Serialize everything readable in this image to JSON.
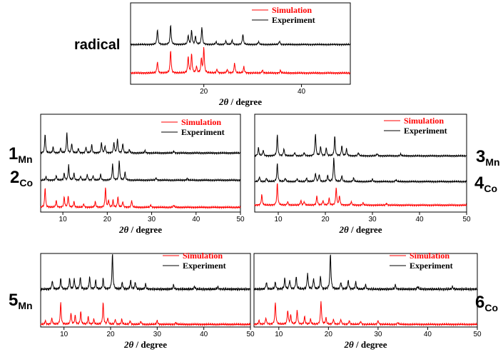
{
  "chart_data": [
    {
      "type": "line",
      "sample_label": "radical",
      "xlabel_prefix": "2θ",
      "xlabel_suffix": " / degree",
      "xlim": [
        5,
        50
      ],
      "xticks": [
        20,
        40
      ],
      "legend": [
        {
          "name": "Simulation",
          "color": "#ff0000"
        },
        {
          "name": "Experiment",
          "color": "#000000"
        }
      ],
      "series": [
        {
          "name": "Experiment",
          "color": "#000000",
          "baseline": 0.5,
          "peaks": [
            [
              10.5,
              0.65
            ],
            [
              13.2,
              0.85
            ],
            [
              16.8,
              0.4
            ],
            [
              17.5,
              0.6
            ],
            [
              18.3,
              0.35
            ],
            [
              19.6,
              0.75
            ],
            [
              22.5,
              0.12
            ],
            [
              24.5,
              0.15
            ],
            [
              25.8,
              0.18
            ],
            [
              28,
              0.45
            ],
            [
              31.2,
              0.12
            ],
            [
              35.5,
              0.15
            ]
          ]
        },
        {
          "name": "Simulation",
          "color": "#ff0000",
          "baseline": 0.06,
          "peaks": [
            [
              10.5,
              0.45
            ],
            [
              13.2,
              0.9
            ],
            [
              16.8,
              0.65
            ],
            [
              17.5,
              0.75
            ],
            [
              18.5,
              0.25
            ],
            [
              19.5,
              0.55
            ],
            [
              20,
              1.0
            ],
            [
              22.7,
              0.15
            ],
            [
              24.8,
              0.15
            ],
            [
              26.3,
              0.4
            ],
            [
              28.2,
              0.25
            ],
            [
              32,
              0.12
            ],
            [
              35.7,
              0.1
            ]
          ]
        }
      ]
    },
    {
      "type": "line",
      "sample_labels": [
        {
          "main": "1",
          "sub": "Mn"
        },
        {
          "main": "2",
          "sub": "Co"
        }
      ],
      "xlabel_prefix": "2θ",
      "xlabel_suffix": " / degree",
      "xlim": [
        5,
        50
      ],
      "xticks": [
        10,
        20,
        30,
        40,
        50
      ],
      "legend": [
        {
          "name": "Simulation",
          "color": "#ff0000"
        },
        {
          "name": "Experiment",
          "color": "#000000"
        }
      ],
      "series": [
        {
          "name": "1Mn",
          "color": "#000000",
          "baseline": 0.78,
          "peaks": [
            [
              6,
              0.8
            ],
            [
              7.8,
              0.25
            ],
            [
              9.5,
              0.2
            ],
            [
              10.9,
              0.85
            ],
            [
              12,
              0.4
            ],
            [
              13.5,
              0.2
            ],
            [
              15.2,
              0.25
            ],
            [
              16.5,
              0.35
            ],
            [
              18.7,
              0.45
            ],
            [
              19.5,
              0.3
            ],
            [
              21.5,
              0.45
            ],
            [
              22.3,
              0.6
            ],
            [
              23.5,
              0.4
            ],
            [
              25,
              0.15
            ],
            [
              28.5,
              0.1
            ],
            [
              35,
              0.08
            ]
          ]
        },
        {
          "name": "2Co",
          "color": "#000000",
          "baseline": 0.45,
          "peaks": [
            [
              6.2,
              0.15
            ],
            [
              8.5,
              0.2
            ],
            [
              10.3,
              0.3
            ],
            [
              11.3,
              0.65
            ],
            [
              12.5,
              0.3
            ],
            [
              14,
              0.18
            ],
            [
              15.5,
              0.25
            ],
            [
              16.8,
              0.2
            ],
            [
              18.5,
              0.25
            ],
            [
              21.2,
              0.7
            ],
            [
              22.7,
              0.85
            ],
            [
              24,
              0.35
            ],
            [
              31,
              0.1
            ],
            [
              38,
              0.08
            ]
          ]
        },
        {
          "name": "Simulation",
          "color": "#ff0000",
          "baseline": 0.06,
          "peaks": [
            [
              6,
              0.85
            ],
            [
              8.5,
              0.3
            ],
            [
              10.3,
              0.45
            ],
            [
              11.2,
              0.5
            ],
            [
              12.5,
              0.25
            ],
            [
              14.7,
              0.15
            ],
            [
              17.3,
              0.25
            ],
            [
              19.6,
              0.85
            ],
            [
              20.3,
              0.3
            ],
            [
              21.3,
              0.3
            ],
            [
              22.4,
              0.45
            ],
            [
              23.5,
              0.25
            ],
            [
              25.5,
              0.3
            ],
            [
              29.8,
              0.1
            ],
            [
              35,
              0.1
            ]
          ]
        }
      ]
    },
    {
      "type": "line",
      "sample_labels": [
        {
          "main": "3",
          "sub": "Mn"
        },
        {
          "main": "4",
          "sub": "Co"
        }
      ],
      "xlabel_prefix": "2θ",
      "xlabel_suffix": " / degree",
      "xlim": [
        5,
        50
      ],
      "xticks": [
        10,
        20,
        30,
        40,
        50
      ],
      "legend": [
        {
          "name": "Simulation",
          "color": "#ff0000"
        },
        {
          "name": "Experiment",
          "color": "#000000"
        }
      ],
      "series": [
        {
          "name": "3Mn",
          "color": "#000000",
          "baseline": 0.8,
          "peaks": [
            [
              5.8,
              0.35
            ],
            [
              6.8,
              0.25
            ],
            [
              9.8,
              0.9
            ],
            [
              11.2,
              0.3
            ],
            [
              13.5,
              0.15
            ],
            [
              15.5,
              0.15
            ],
            [
              17.9,
              0.95
            ],
            [
              19,
              0.4
            ],
            [
              20.2,
              0.35
            ],
            [
              22,
              0.85
            ],
            [
              23.5,
              0.45
            ],
            [
              24.5,
              0.3
            ],
            [
              27,
              0.15
            ],
            [
              31,
              0.1
            ],
            [
              36,
              0.08
            ]
          ]
        },
        {
          "name": "4Co",
          "color": "#000000",
          "baseline": 0.45,
          "peaks": [
            [
              6,
              0.2
            ],
            [
              7.5,
              0.15
            ],
            [
              9.8,
              0.75
            ],
            [
              11.5,
              0.15
            ],
            [
              14,
              0.12
            ],
            [
              16,
              0.15
            ],
            [
              17.9,
              0.35
            ],
            [
              18.7,
              0.3
            ],
            [
              20.5,
              0.25
            ],
            [
              21.8,
              1.0
            ],
            [
              23.5,
              0.25
            ],
            [
              26,
              0.15
            ],
            [
              30,
              0.1
            ],
            [
              35,
              0.08
            ]
          ]
        },
        {
          "name": "Simulation",
          "color": "#ff0000",
          "baseline": 0.06,
          "peaks": [
            [
              6.5,
              0.45
            ],
            [
              9.8,
              0.95
            ],
            [
              12,
              0.15
            ],
            [
              14.8,
              0.2
            ],
            [
              15.5,
              0.15
            ],
            [
              18.2,
              0.4
            ],
            [
              19.5,
              0.2
            ],
            [
              20.8,
              0.3
            ],
            [
              22.3,
              0.75
            ],
            [
              23,
              0.4
            ],
            [
              25.5,
              0.15
            ],
            [
              28,
              0.1
            ],
            [
              33,
              0.08
            ]
          ]
        }
      ]
    },
    {
      "type": "line",
      "sample_labels": [
        {
          "main": "5",
          "sub": "Mn"
        }
      ],
      "xlabel_prefix": "2θ",
      "xlabel_suffix": " / degree",
      "xlim": [
        5,
        50
      ],
      "xticks": [
        10,
        20,
        30,
        40,
        50
      ],
      "legend": [
        {
          "name": "Simulation",
          "color": "#ff0000"
        },
        {
          "name": "Experiment",
          "color": "#000000"
        }
      ],
      "series": [
        {
          "name": "5Mn",
          "color": "#000000",
          "baseline": 0.53,
          "peaks": [
            [
              7.5,
              0.25
            ],
            [
              9.3,
              0.3
            ],
            [
              11.2,
              0.3
            ],
            [
              12.2,
              0.3
            ],
            [
              13.5,
              0.35
            ],
            [
              15.5,
              0.35
            ],
            [
              16.8,
              0.25
            ],
            [
              18.4,
              0.3
            ],
            [
              20.4,
              1.0
            ],
            [
              22.5,
              0.2
            ],
            [
              24.3,
              0.25
            ],
            [
              25.3,
              0.2
            ],
            [
              27.5,
              0.15
            ],
            [
              33.5,
              0.12
            ],
            [
              38,
              0.08
            ],
            [
              43,
              0.07
            ]
          ]
        },
        {
          "name": "Simulation",
          "color": "#ff0000",
          "baseline": 0.06,
          "peaks": [
            [
              6,
              0.15
            ],
            [
              7.4,
              0.25
            ],
            [
              9.3,
              0.85
            ],
            [
              11.5,
              0.45
            ],
            [
              12.4,
              0.35
            ],
            [
              13.6,
              0.5
            ],
            [
              15.2,
              0.3
            ],
            [
              16.4,
              0.2
            ],
            [
              18.4,
              0.85
            ],
            [
              19.4,
              0.25
            ],
            [
              21,
              0.2
            ],
            [
              22.4,
              0.2
            ],
            [
              24.2,
              0.15
            ],
            [
              26.5,
              0.12
            ],
            [
              30,
              0.15
            ],
            [
              34,
              0.08
            ]
          ]
        }
      ]
    },
    {
      "type": "line",
      "sample_labels": [
        {
          "main": "6",
          "sub": "Co"
        }
      ],
      "xlabel_prefix": "2θ",
      "xlabel_suffix": " / degree",
      "xlim": [
        5,
        50
      ],
      "xticks": [
        10,
        20,
        30,
        40,
        50
      ],
      "legend": [
        {
          "name": "Simulation",
          "color": "#ff0000"
        },
        {
          "name": "Experiment",
          "color": "#000000"
        }
      ],
      "series": [
        {
          "name": "6Co",
          "color": "#000000",
          "baseline": 0.53,
          "peaks": [
            [
              7.5,
              0.2
            ],
            [
              9.3,
              0.2
            ],
            [
              11.2,
              0.3
            ],
            [
              12.2,
              0.25
            ],
            [
              13.5,
              0.35
            ],
            [
              15.8,
              0.45
            ],
            [
              17,
              0.3
            ],
            [
              18.4,
              0.35
            ],
            [
              20.4,
              1.0
            ],
            [
              22.5,
              0.2
            ],
            [
              24,
              0.25
            ],
            [
              25.5,
              0.2
            ],
            [
              27.5,
              0.12
            ],
            [
              33.5,
              0.12
            ],
            [
              38,
              0.08
            ],
            [
              45,
              0.07
            ]
          ]
        },
        {
          "name": "Simulation",
          "color": "#ff0000",
          "baseline": 0.06,
          "peaks": [
            [
              6,
              0.15
            ],
            [
              7.4,
              0.25
            ],
            [
              9.3,
              0.85
            ],
            [
              11.8,
              0.55
            ],
            [
              12.4,
              0.35
            ],
            [
              13.7,
              0.55
            ],
            [
              15.2,
              0.3
            ],
            [
              16.4,
              0.2
            ],
            [
              18.5,
              0.9
            ],
            [
              19.5,
              0.25
            ],
            [
              21,
              0.2
            ],
            [
              22.5,
              0.2
            ],
            [
              24.2,
              0.15
            ],
            [
              26.5,
              0.12
            ],
            [
              30,
              0.15
            ],
            [
              34,
              0.08
            ]
          ]
        }
      ]
    }
  ]
}
